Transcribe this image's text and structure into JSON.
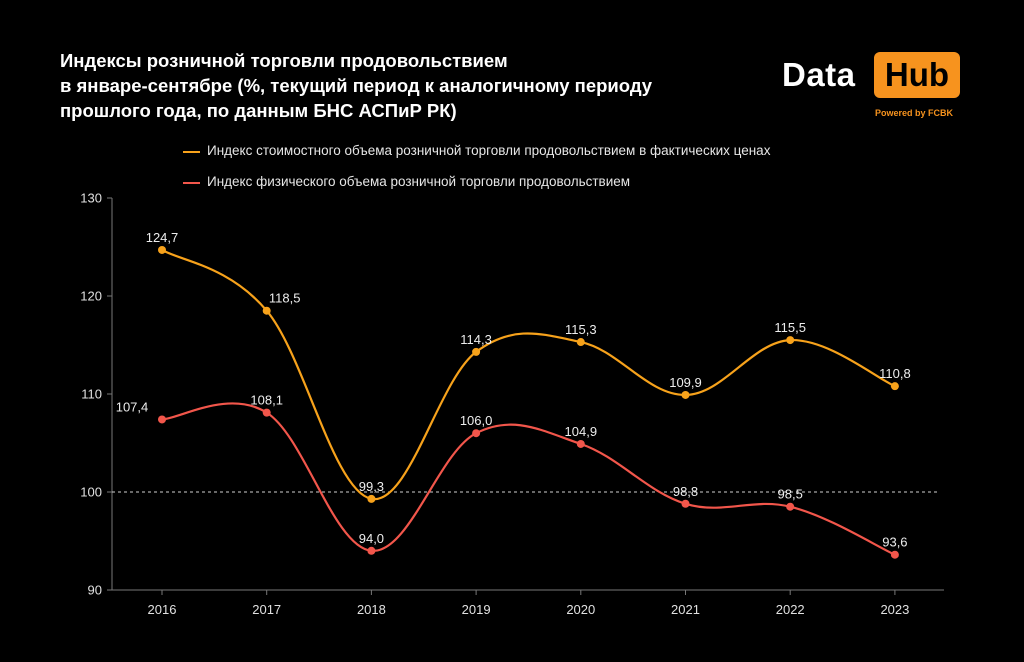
{
  "header": {
    "title_lines": [
      "Индексы розничной торговли продовольствием",
      "в январе-сентябре (%, текущий период к аналогичному периоду",
      "прошлого года, по данным БНС АСПиР РК)"
    ]
  },
  "logo": {
    "word1": "Data",
    "word2": "Hub",
    "tagline": "Powered by FCBK",
    "accent": "#f7931e"
  },
  "chart_data": {
    "type": "line",
    "title": "Индексы розничной торговли продовольствием в январе-сентябре (%, текущий период к аналогичному периоду прошлого года, по данным БНС АСПиР РК)",
    "categories": [
      "2016",
      "2017",
      "2018",
      "2019",
      "2020",
      "2021",
      "2022",
      "2023"
    ],
    "series": [
      {
        "name": "Индекс стоимостного объема розничной торговли продовольствием в фактических ценах",
        "color": "#f7a21b",
        "values": [
          124.7,
          118.5,
          99.3,
          114.3,
          115.3,
          109.9,
          115.5,
          110.8
        ],
        "labels": [
          "124,7",
          "118,5",
          "99,3",
          "114,3",
          "115,3",
          "109,9",
          "115,5",
          "110,8"
        ]
      },
      {
        "name": "Индекс физического объема розничной торговли продовольствием",
        "color": "#f2564b",
        "values": [
          107.4,
          108.1,
          94.0,
          106.0,
          104.9,
          98.8,
          98.5,
          93.6
        ],
        "labels": [
          "107,4",
          "108,1",
          "94,0",
          "106,0",
          "104,9",
          "98,8",
          "98,5",
          "93,6"
        ]
      }
    ],
    "ylim": [
      90,
      130
    ],
    "yticks": [
      "90",
      "100",
      "110",
      "120",
      "130"
    ],
    "reference_line": 100,
    "grid": false,
    "legend_position": "top"
  }
}
